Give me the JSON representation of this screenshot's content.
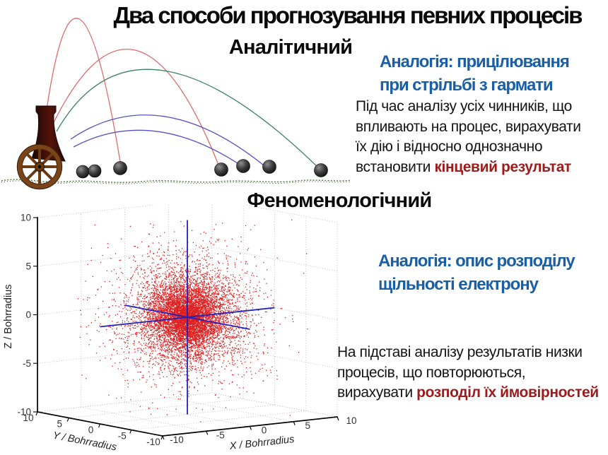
{
  "slide": {
    "title": "Два способи прогнозування певних процесів",
    "colors": {
      "accent_blue": "#1a5fa6",
      "accent_red": "#9e1b1b"
    },
    "analytical": {
      "heading": "Аналітичний",
      "analogy_lines": [
        "Аналогія: прицілювання",
        "при стрільбі з гармати"
      ],
      "body_lines": [
        "Під час аналізу усіх чинників, що",
        "впливають на процес, вирахувати",
        "їх дію і відносно однозначно",
        "встановити"
      ],
      "body_highlight": "кінцевий результат"
    },
    "phenomenological": {
      "heading": "Феноменологічний",
      "analogy_lines": [
        "Аналогія: опис розподілу",
        "щільності електрону"
      ],
      "body_lines": [
        "На підставі аналізу результатів низки",
        "процесів, що повторюються,",
        "вирахувати"
      ],
      "body_highlight": "розподіл їх ймовірностей"
    }
  },
  "cannon_illustration": {
    "description": "Cannon firing: several trajectory arcs of different colors and cannonballs lying on a dotted ground line",
    "trajectory_colors": {
      "red": "#e06a6a",
      "green": "#3c8161",
      "blue": "#5151c8"
    },
    "cannonball_count": 7
  },
  "chart_data": {
    "type": "scatter",
    "projection": "3d",
    "title": "",
    "xlabel": "X / Bohrradius",
    "ylabel": "Y / Bohrradius",
    "zlabel": "Z / Bohrradius",
    "xlim": [
      -10,
      10
    ],
    "ylim": [
      -10,
      10
    ],
    "zlim": [
      -10,
      10
    ],
    "xticks": [
      -10,
      -5,
      0,
      5,
      10
    ],
    "yticks": [
      10,
      5,
      0,
      -5,
      -10
    ],
    "zticks": [
      10,
      5,
      0,
      -5,
      -10
    ],
    "grid": true,
    "legend": false,
    "point_color": "#e02020",
    "center_axes_color": "#2121bd",
    "n_points": 9000,
    "seed": 20,
    "distribution": {
      "kind": "spherical cloud densest at the origin (hydrogen-like electron density)",
      "center": [
        0,
        0,
        0
      ],
      "core_scale": 1.15,
      "halo_scale": 2.2,
      "halo_fraction": 0.15
    },
    "annotations": "blue coordinate axes drawn through the origin from -10 to 10 on X, Y and Z"
  }
}
